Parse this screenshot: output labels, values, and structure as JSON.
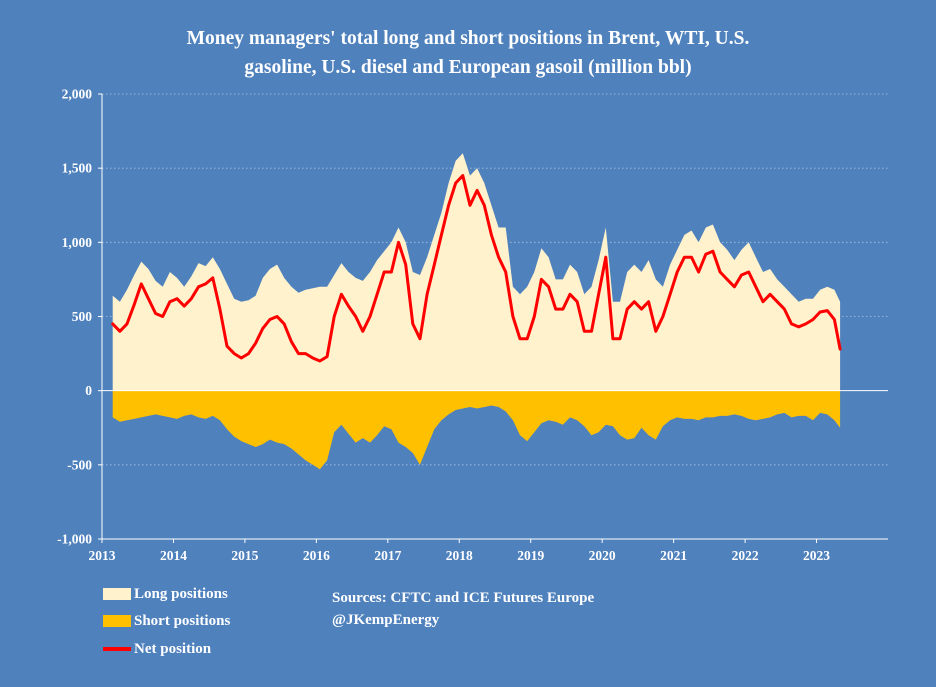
{
  "chart_data": {
    "type": "area",
    "title_lines": [
      "Money managers' total long and short positions in Brent, WTI, U.S.",
      "gasoline, U.S. diesel and European gasoil  (million bbl)"
    ],
    "xlabel": "",
    "ylabel": "",
    "xlim": [
      2013.0,
      2024.0
    ],
    "ylim": [
      -1000,
      2000
    ],
    "yticks": [
      2000,
      1500,
      1000,
      500,
      0,
      -500,
      -1000
    ],
    "ytick_labels": [
      "2,000",
      "1,500",
      "1,000",
      "500",
      "0",
      "-500",
      "-1,000"
    ],
    "xticks": [
      2013,
      2014,
      2015,
      2016,
      2017,
      2018,
      2019,
      2020,
      2021,
      2022,
      2023
    ],
    "xtick_labels": [
      "2013",
      "2014",
      "2015",
      "2016",
      "2017",
      "2018",
      "2019",
      "2020",
      "2021",
      "2022",
      "2023"
    ],
    "grid": true,
    "legend_position": "bottom-left",
    "x": [
      2013.15,
      2013.25,
      2013.35,
      2013.45,
      2013.55,
      2013.65,
      2013.75,
      2013.85,
      2013.95,
      2014.05,
      2014.15,
      2014.25,
      2014.35,
      2014.45,
      2014.55,
      2014.65,
      2014.75,
      2014.85,
      2014.95,
      2015.05,
      2015.15,
      2015.25,
      2015.35,
      2015.45,
      2015.55,
      2015.65,
      2015.75,
      2015.85,
      2015.95,
      2016.05,
      2016.15,
      2016.25,
      2016.35,
      2016.45,
      2016.55,
      2016.65,
      2016.75,
      2016.85,
      2016.95,
      2017.05,
      2017.15,
      2017.25,
      2017.35,
      2017.45,
      2017.55,
      2017.65,
      2017.75,
      2017.85,
      2017.95,
      2018.05,
      2018.15,
      2018.25,
      2018.35,
      2018.45,
      2018.55,
      2018.65,
      2018.75,
      2018.85,
      2018.95,
      2019.05,
      2019.15,
      2019.25,
      2019.35,
      2019.45,
      2019.55,
      2019.65,
      2019.75,
      2019.85,
      2019.95,
      2020.05,
      2020.15,
      2020.25,
      2020.35,
      2020.45,
      2020.55,
      2020.65,
      2020.75,
      2020.85,
      2020.95,
      2021.05,
      2021.15,
      2021.25,
      2021.35,
      2021.45,
      2021.55,
      2021.65,
      2021.75,
      2021.85,
      2021.95,
      2022.05,
      2022.15,
      2022.25,
      2022.35,
      2022.45,
      2022.55,
      2022.65,
      2022.75,
      2022.85,
      2022.95,
      2023.05,
      2023.15,
      2023.25,
      2023.33
    ],
    "series": [
      {
        "name": "Long positions",
        "color": "#fff2cc",
        "values": [
          640,
          600,
          680,
          780,
          870,
          820,
          740,
          700,
          800,
          760,
          700,
          770,
          860,
          840,
          900,
          820,
          720,
          620,
          600,
          610,
          640,
          760,
          820,
          850,
          760,
          700,
          660,
          680,
          690,
          700,
          700,
          780,
          860,
          800,
          760,
          740,
          800,
          880,
          940,
          1000,
          1100,
          1000,
          800,
          780,
          900,
          1050,
          1200,
          1400,
          1550,
          1600,
          1450,
          1500,
          1400,
          1250,
          1100,
          1100,
          700,
          650,
          700,
          800,
          960,
          900,
          750,
          750,
          850,
          800,
          650,
          700,
          880,
          1100,
          600,
          600,
          800,
          850,
          800,
          880,
          750,
          700,
          850,
          950,
          1050,
          1080,
          1000,
          1100,
          1120,
          1000,
          950,
          880,
          950,
          1000,
          900,
          800,
          820,
          750,
          700,
          650,
          600,
          620,
          620,
          680,
          700,
          680,
          600
        ]
      },
      {
        "name": "Short positions",
        "color": "#ffc000",
        "values": [
          -180,
          -210,
          -200,
          -190,
          -180,
          -170,
          -160,
          -170,
          -180,
          -190,
          -170,
          -160,
          -180,
          -190,
          -170,
          -200,
          -260,
          -310,
          -340,
          -360,
          -380,
          -360,
          -330,
          -350,
          -360,
          -390,
          -430,
          -470,
          -500,
          -530,
          -470,
          -280,
          -230,
          -290,
          -350,
          -320,
          -350,
          -300,
          -240,
          -260,
          -350,
          -380,
          -420,
          -500,
          -380,
          -260,
          -200,
          -160,
          -130,
          -120,
          -110,
          -120,
          -110,
          -100,
          -110,
          -140,
          -200,
          -300,
          -340,
          -280,
          -220,
          -200,
          -210,
          -230,
          -180,
          -200,
          -240,
          -300,
          -280,
          -230,
          -240,
          -300,
          -330,
          -320,
          -250,
          -300,
          -330,
          -240,
          -200,
          -180,
          -190,
          -190,
          -200,
          -180,
          -180,
          -170,
          -170,
          -160,
          -170,
          -190,
          -200,
          -190,
          -180,
          -160,
          -150,
          -180,
          -170,
          -170,
          -200,
          -150,
          -160,
          -200,
          -250
        ]
      },
      {
        "name": "Net position",
        "color": "#ff0000",
        "values": [
          450,
          400,
          450,
          580,
          720,
          620,
          520,
          500,
          600,
          620,
          570,
          620,
          700,
          720,
          760,
          550,
          300,
          250,
          220,
          250,
          320,
          420,
          480,
          500,
          450,
          330,
          250,
          250,
          220,
          200,
          230,
          500,
          650,
          570,
          500,
          400,
          500,
          650,
          800,
          800,
          1000,
          850,
          450,
          350,
          650,
          850,
          1050,
          1250,
          1400,
          1450,
          1250,
          1350,
          1250,
          1050,
          900,
          800,
          500,
          350,
          350,
          500,
          750,
          700,
          550,
          550,
          650,
          600,
          400,
          400,
          650,
          900,
          350,
          350,
          550,
          600,
          550,
          600,
          400,
          500,
          650,
          800,
          900,
          900,
          800,
          920,
          940,
          800,
          750,
          700,
          780,
          800,
          700,
          600,
          650,
          600,
          550,
          450,
          430,
          450,
          480,
          530,
          540,
          480,
          280
        ]
      }
    ]
  },
  "legend": {
    "long_label": "Long positions",
    "short_label": "Short positions",
    "net_label": "Net position"
  },
  "sources": {
    "line1": "Sources: CFTC and ICE Futures Europe",
    "line2": "@JKempEnergy"
  },
  "colors": {
    "background": "#4f81bd",
    "long": "#fff2cc",
    "short": "#ffc000",
    "net": "#ff0000"
  }
}
